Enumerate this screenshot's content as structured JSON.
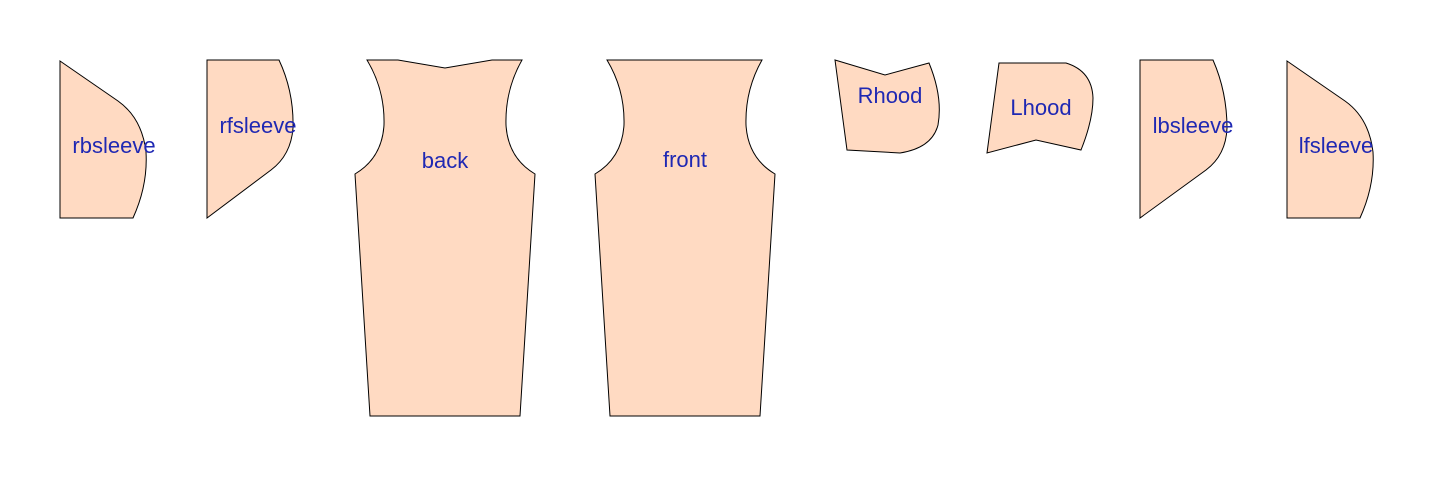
{
  "diagram": {
    "title": "",
    "fill_color": "#FFDAC2",
    "label_color": "#1F28B3",
    "outline_color": "#000000",
    "pieces": [
      {
        "id": "rbsleeve",
        "label": "rbsleeve"
      },
      {
        "id": "rfsleeve",
        "label": "rfsleeve"
      },
      {
        "id": "back",
        "label": "back"
      },
      {
        "id": "front",
        "label": "front"
      },
      {
        "id": "Rhood",
        "label": "Rhood"
      },
      {
        "id": "Lhood",
        "label": "Lhood"
      },
      {
        "id": "lbsleeve",
        "label": "lbsleeve"
      },
      {
        "id": "lfsleeve",
        "label": "lfsleeve"
      }
    ]
  }
}
